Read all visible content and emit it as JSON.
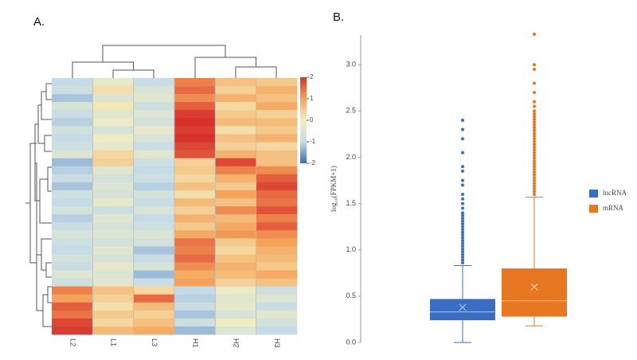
{
  "chart_data": [
    {
      "type": "heatmap",
      "panel_label": "A.",
      "columns": [
        "L2",
        "L1",
        "L3",
        "H1",
        "H2",
        "H3"
      ],
      "values": [
        [
          -1,
          -0.3,
          -0.9,
          1.3,
          0.6,
          0.5
        ],
        [
          -0.8,
          0.2,
          -0.6,
          1.5,
          0.4,
          0.8
        ],
        [
          -1.2,
          -0.5,
          -0.4,
          1.2,
          0.8,
          0.6
        ],
        [
          -0.6,
          0.1,
          -0.8,
          1.6,
          0.3,
          0.9
        ],
        [
          -0.9,
          -0.4,
          -0.5,
          1.9,
          0.5,
          0.4
        ],
        [
          -1.1,
          -0.2,
          -0.7,
          2,
          0.7,
          0.7
        ],
        [
          -0.7,
          -0.6,
          -0.3,
          1.9,
          0.2,
          0.5
        ],
        [
          -1,
          -0.1,
          -0.6,
          2,
          0.6,
          0.8
        ],
        [
          -0.8,
          -0.3,
          -0.9,
          1.8,
          0.4,
          0.3
        ],
        [
          -0.5,
          0.3,
          -0.4,
          1.7,
          0.8,
          0.6
        ],
        [
          -1.3,
          0.4,
          -0.8,
          0.4,
          1.8,
          0.6
        ],
        [
          -1.1,
          -0.4,
          -1,
          0.5,
          1.3,
          1.2
        ],
        [
          -0.9,
          -0.7,
          -0.8,
          0.3,
          0.8,
          1.6
        ],
        [
          -1.2,
          -0.5,
          -1.1,
          0.6,
          0.5,
          1.8
        ],
        [
          -0.8,
          -0.6,
          -0.7,
          0.2,
          1,
          1.5
        ],
        [
          -1,
          -0.3,
          -0.9,
          0.7,
          0.6,
          1.4
        ],
        [
          -0.7,
          -0.8,
          -0.6,
          0.4,
          1.2,
          1.7
        ],
        [
          -1.1,
          -0.4,
          -1,
          0.8,
          0.7,
          1.3
        ],
        [
          -0.9,
          -0.6,
          -0.8,
          0.5,
          0.9,
          1.6
        ],
        [
          -0.6,
          -0.5,
          -0.5,
          0.9,
          1.1,
          1.2
        ],
        [
          -0.8,
          -0.7,
          -0.7,
          1.4,
          0.5,
          1
        ],
        [
          -1,
          -0.4,
          -1.2,
          1.3,
          0.3,
          0.8
        ],
        [
          -0.7,
          -0.6,
          -0.9,
          1.5,
          0.6,
          0.7
        ],
        [
          -0.9,
          -0.3,
          -0.6,
          1.2,
          0.8,
          0.5
        ],
        [
          -0.5,
          -0.5,
          -1.3,
          0.9,
          0.7,
          0.9
        ],
        [
          -0.8,
          -0.4,
          -0.9,
          1,
          0.4,
          0.6
        ],
        [
          1.3,
          0.6,
          0.3,
          -1,
          -0.2,
          -0.8
        ],
        [
          1,
          0.4,
          1.5,
          -1.1,
          -0.4,
          -0.5
        ],
        [
          1.6,
          0.2,
          0.7,
          -0.9,
          -0.3,
          -0.9
        ],
        [
          1.4,
          0.5,
          0.4,
          -1.2,
          -0.6,
          -0.4
        ],
        [
          1.8,
          0.3,
          0.6,
          -0.8,
          -0.1,
          -0.7
        ],
        [
          1.9,
          0.7,
          0.9,
          -1.3,
          -0.5,
          -1
        ]
      ],
      "colorbar_ticks": [
        2,
        1,
        0,
        -1,
        -2
      ],
      "colors": [
        "#d7312a",
        "#f5a35a",
        "#f3eebe",
        "#c5dbe8",
        "#3a6fb0"
      ]
    },
    {
      "type": "box",
      "panel_label": "B.",
      "y_label": "log₁₀(FPKM+1)",
      "ylim": [
        0,
        3.32
      ],
      "yticks": [
        {
          "value": 0,
          "label": "0.0"
        },
        {
          "value": 0.5,
          "label": "0.5"
        },
        {
          "value": 1,
          "label": "1.0"
        },
        {
          "value": 1.5,
          "label": "1.5"
        },
        {
          "value": 2,
          "label": "2.0"
        },
        {
          "value": 2.5,
          "label": "2.5"
        },
        {
          "value": 3,
          "label": "3.0"
        }
      ],
      "legend": "right",
      "series": [
        {
          "name": "lncRNA",
          "color": "#3a6ec4",
          "min": 0,
          "q1": 0.24,
          "median": 0.33,
          "q3": 0.47,
          "max": 0.83,
          "mean": 0.38,
          "outliers": [
            0.86,
            0.89,
            0.92,
            0.95,
            0.98,
            1.01,
            1.04,
            1.07,
            1.1,
            1.13,
            1.16,
            1.19,
            1.22,
            1.25,
            1.28,
            1.31,
            1.34,
            1.37,
            1.4,
            1.45,
            1.5,
            1.55,
            1.6,
            1.7,
            1.75,
            1.85,
            1.9,
            2.05,
            2.2,
            2.3,
            2.4
          ]
        },
        {
          "name": "mRNA",
          "color": "#e87722",
          "min": 0.18,
          "q1": 0.28,
          "median": 0.45,
          "q3": 0.8,
          "max": 1.57,
          "mean": 0.6,
          "outliers": [
            1.6,
            1.63,
            1.66,
            1.69,
            1.72,
            1.75,
            1.78,
            1.81,
            1.84,
            1.87,
            1.9,
            1.93,
            1.96,
            1.99,
            2.02,
            2.05,
            2.08,
            2.11,
            2.14,
            2.17,
            2.2,
            2.23,
            2.26,
            2.29,
            2.32,
            2.35,
            2.38,
            2.41,
            2.44,
            2.47,
            2.5,
            2.55,
            2.6,
            2.7,
            2.8,
            2.95,
            3,
            3.33
          ]
        }
      ]
    }
  ]
}
